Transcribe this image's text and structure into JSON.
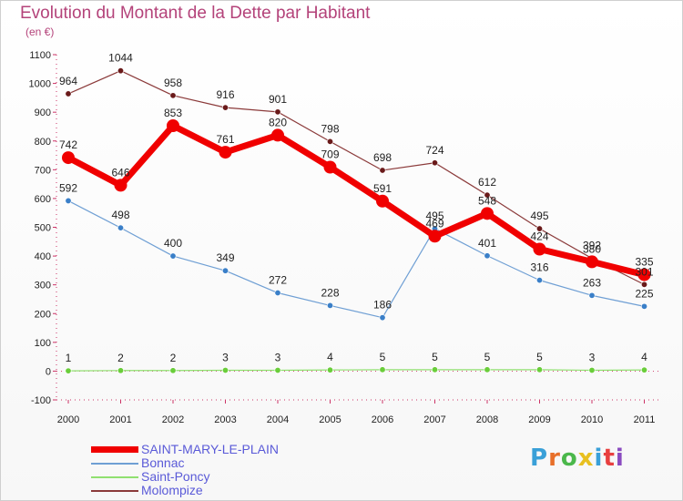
{
  "title": "Evolution du Montant de la Dette par Habitant",
  "subtitle": "(en €)",
  "logo": {
    "text": "Proxiti",
    "colors": [
      "#3aa0d8",
      "#e8702a",
      "#4bb84b",
      "#e8c020",
      "#3aa0d8",
      "#e84040",
      "#8a4bc0"
    ]
  },
  "chart_data": {
    "type": "line",
    "x": [
      "2000",
      "2001",
      "2002",
      "2003",
      "2004",
      "2005",
      "2006",
      "2007",
      "2008",
      "2009",
      "2010",
      "2011"
    ],
    "ylim": [
      -100,
      1100
    ],
    "yticks": [
      "-100",
      "0",
      "100",
      "200",
      "300",
      "400",
      "500",
      "600",
      "700",
      "800",
      "900",
      "1000",
      "1100"
    ],
    "grid": false,
    "legend_position": "bottom-left",
    "series": [
      {
        "name": "SAINT-MARY-LE-PLAIN",
        "color": "#f00000",
        "width": 7,
        "marker": 7,
        "values": [
          742,
          646,
          853,
          761,
          820,
          709,
          591,
          469,
          548,
          424,
          380,
          335
        ],
        "labels": [
          "742",
          "646",
          "853",
          "761",
          "820",
          "709",
          "591",
          "469",
          "548",
          "424",
          "380",
          "335"
        ]
      },
      {
        "name": "Bonnac",
        "color": "#6f9fd4",
        "width": 1.2,
        "marker": 3.2,
        "markerFill": "#3a7fc8",
        "values": [
          592,
          498,
          400,
          349,
          272,
          228,
          186,
          495,
          401,
          316,
          263,
          225
        ],
        "labels": [
          "592",
          "498",
          "400",
          "349",
          "272",
          "228",
          "186",
          "495",
          "401",
          "316",
          "263",
          "225"
        ]
      },
      {
        "name": "Saint-Poncy",
        "color": "#90e070",
        "width": 1.2,
        "marker": 3.2,
        "markerFill": "#6acd3a",
        "values": [
          1,
          2,
          2,
          3,
          3,
          4,
          5,
          5,
          5,
          5,
          3,
          4
        ],
        "labels": [
          "1",
          "2",
          "2",
          "3",
          "3",
          "4",
          "5",
          "5",
          "5",
          "5",
          "3",
          "4"
        ]
      },
      {
        "name": "Molompize",
        "color": "#8b3a3a",
        "width": 1.2,
        "marker": 3.2,
        "markerFill": "#6a1a1a",
        "values": [
          964,
          1044,
          958,
          916,
          901,
          798,
          698,
          724,
          612,
          495,
          392,
          301
        ],
        "labels": [
          "964",
          "1044",
          "958",
          "916",
          "901",
          "798",
          "698",
          "724",
          "612",
          "495",
          "392",
          "301"
        ]
      }
    ]
  }
}
